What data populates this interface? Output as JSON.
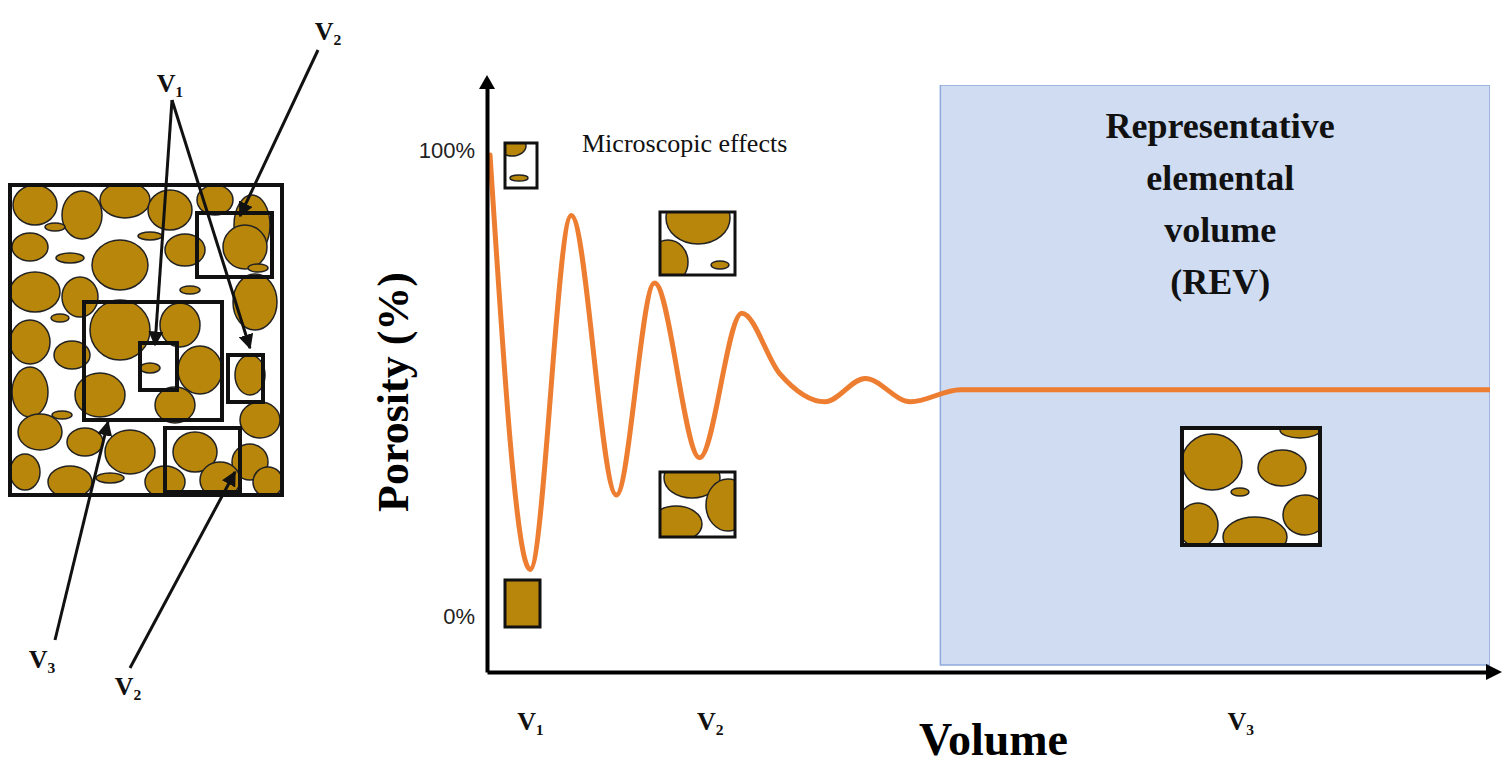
{
  "chart_data": {
    "type": "line",
    "x_label": "Volume",
    "y_label": "Porosity (%)",
    "annotations": [
      "Microscopic effects"
    ],
    "region": {
      "label": "Representative elemental volume (REV)",
      "x": [
        45.2,
        100
      ],
      "color": "#cfdcf1"
    },
    "x": [
      0.3,
      4.3,
      8.4,
      12.9,
      16.7,
      21.2,
      25.4,
      29.2,
      33.7,
      37.7,
      42.2,
      47.2,
      52,
      60,
      70,
      80,
      90,
      100
    ],
    "values": [
      99,
      10,
      86,
      26,
      71.5,
      34,
      65,
      52,
      46,
      51,
      46,
      48.6,
      48.6,
      48.6,
      48.6,
      48.6,
      48.6,
      48.6
    ],
    "color": "#ed7d31",
    "xlim": [
      0,
      100
    ],
    "ylim": [
      -12,
      114
    ],
    "xticks": [
      {
        "value": 4.3,
        "label": "V₁"
      },
      {
        "value": 22.2,
        "label": "V₂"
      },
      {
        "value": 75.1,
        "label": "V₃"
      }
    ],
    "yticks": [
      {
        "value": 0,
        "label": "0%"
      },
      {
        "value": 100,
        "label": "100%"
      }
    ],
    "grid": false
  },
  "schematic": {
    "labels": [
      "V₁",
      "V₂",
      "V₂",
      "V₃"
    ]
  }
}
